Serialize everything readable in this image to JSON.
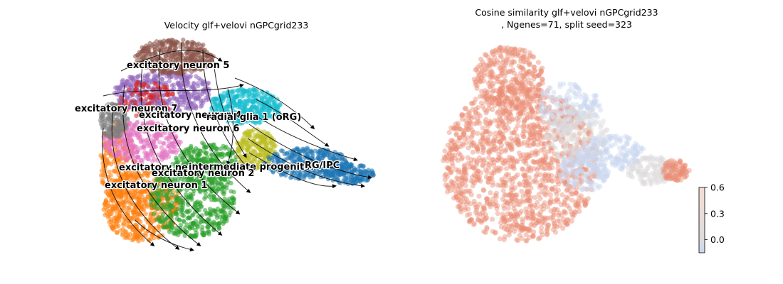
{
  "colors": {
    "excitatory neuron 1": "#ff7f0e",
    "excitatory neuron 2": "#2ca02c",
    "excitatory neuron 4": "#9467bd",
    "excitatory neuron 5": "#8c564b",
    "excitatory neuron 6": "#e377c2",
    "excitatory neuron 7": "#7f7f7f",
    "intermediate progenitor": "#bcbd22",
    "radial glia 1 (oRG)": "#17becf",
    "RG/IPC": "#1f77b4",
    "excitatory neuron": "#d62728",
    "cosine_low": "#c9d7f0",
    "cosine_mid": "#dddcdc",
    "cosine_high": "#ec8f75"
  },
  "chart_data": [
    {
      "type": "scatter",
      "title": "Velocity glf+velovi nGPCgrid233",
      "overlay": "streamlines",
      "grid": false,
      "axes": false,
      "cluster_labels": [
        "excitatory neuron 5",
        "excitatory neuron 7",
        "excitatory neuron 4",
        "radial glia 1 (oRG)",
        "excitatory neuron 6",
        "excitatory neuron",
        "intermediate progenitor",
        "RG/IPC",
        "excitatory neuron 2",
        "excitatory neuron 1"
      ]
    },
    {
      "type": "scatter",
      "title_line1": "Cosine similarity glf+velovi nGPCgrid233",
      "title_line2": ", Ngenes=71, split seed=323",
      "grid": false,
      "axes": false,
      "colorbar": {
        "ticks": [
          "0.6",
          "0.3",
          "0.0"
        ],
        "tick_values": [
          0.6,
          0.3,
          0.0
        ],
        "range": [
          -0.15,
          0.6
        ]
      }
    }
  ]
}
